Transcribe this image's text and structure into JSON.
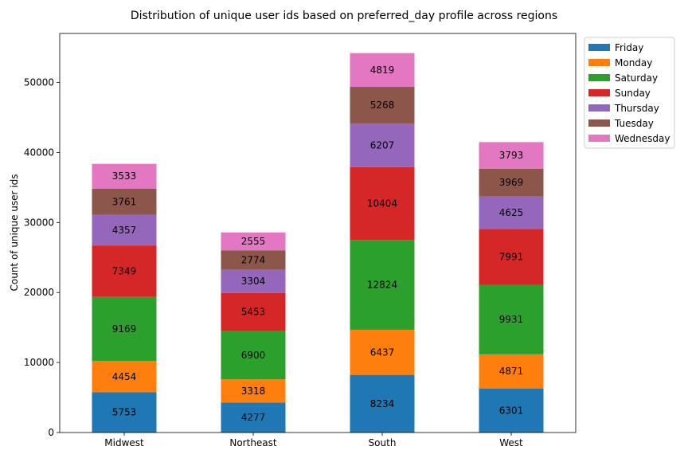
{
  "chart_data": {
    "type": "bar",
    "stacked": true,
    "title": "Distribution of unique user ids based on preferred_day profile across regions",
    "xlabel": "",
    "ylabel": "Count of unique user ids",
    "ylim": [
      0,
      57000
    ],
    "yticks": [
      0,
      10000,
      20000,
      30000,
      40000,
      50000
    ],
    "grid": false,
    "legend_position": "outside-top-right",
    "categories": [
      "Midwest",
      "Northeast",
      "South",
      "West"
    ],
    "series": [
      {
        "name": "Friday",
        "color": "#1f77b4",
        "values": [
          5753,
          4277,
          8234,
          6301
        ]
      },
      {
        "name": "Monday",
        "color": "#ff7f0e",
        "values": [
          4454,
          3318,
          6437,
          4871
        ]
      },
      {
        "name": "Saturday",
        "color": "#2ca02c",
        "values": [
          9169,
          6900,
          12824,
          9931
        ]
      },
      {
        "name": "Sunday",
        "color": "#d62728",
        "values": [
          7349,
          5453,
          10404,
          7991
        ]
      },
      {
        "name": "Thursday",
        "color": "#9467bd",
        "values": [
          4357,
          3304,
          6207,
          4625
        ]
      },
      {
        "name": "Tuesday",
        "color": "#8c564b",
        "values": [
          3761,
          2774,
          5268,
          3969
        ]
      },
      {
        "name": "Wednesday",
        "color": "#e377c2",
        "values": [
          3533,
          2555,
          4819,
          3793
        ]
      }
    ]
  }
}
